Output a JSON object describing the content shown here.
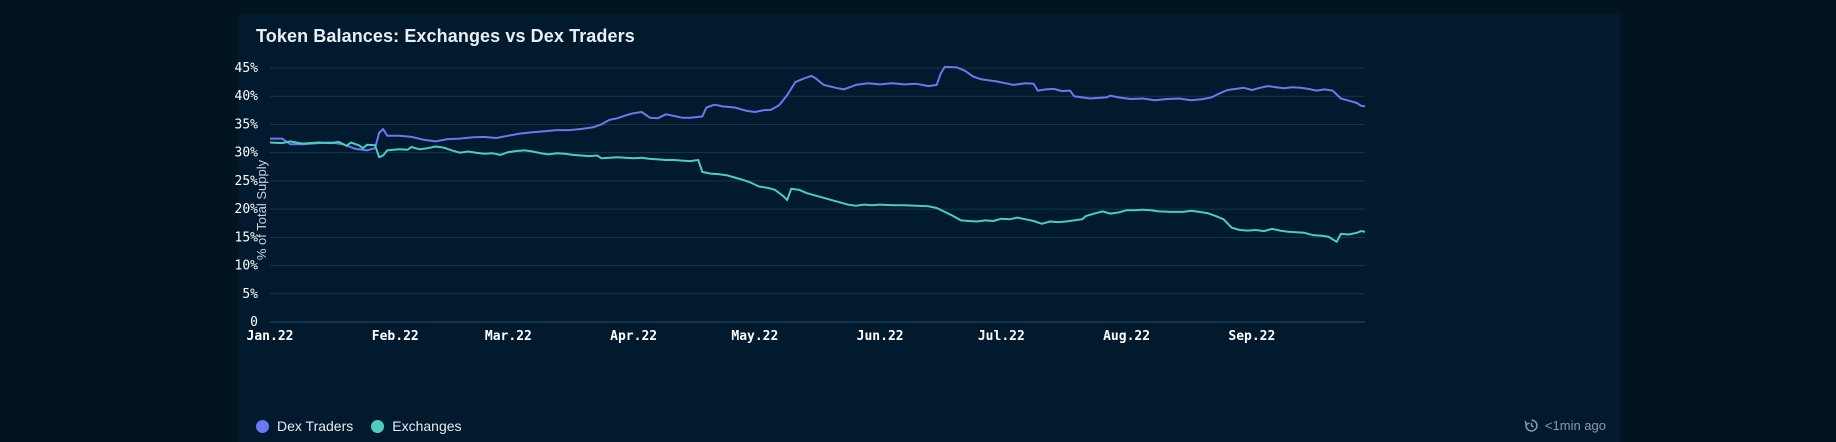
{
  "chart_title": "Token Balances: Exchanges vs Dex Traders",
  "refresh_text": "<1min ago",
  "colors": {
    "background": "#031421",
    "card": "#011a2e",
    "grid": "#16364d",
    "dex": "#6b78f0",
    "exchanges": "#49cec0"
  },
  "chart_data": {
    "type": "line",
    "title": "Token Balances: Exchanges vs Dex Traders",
    "ylabel": "% of Total Supply",
    "xlabel": "",
    "ylim": [
      0,
      45
    ],
    "y_ticks": [
      "0",
      "5%",
      "10%",
      "15%",
      "20%",
      "25%",
      "30%",
      "35%",
      "40%",
      "45%"
    ],
    "x_tick_labels": [
      "Jan.22",
      "Feb.22",
      "Mar.22",
      "Apr.22",
      "May.22",
      "Jun.22",
      "Jul.22",
      "Aug.22",
      "Sep.22"
    ],
    "x_tick_days": [
      0,
      31,
      59,
      90,
      120,
      151,
      181,
      212,
      243
    ],
    "x_range_days": [
      0,
      271
    ],
    "grid": true,
    "legend": "bottom-left",
    "series": [
      {
        "name": "Dex Traders",
        "color": "#6b78f0",
        "points": [
          [
            0,
            32.5
          ],
          [
            3,
            32.5
          ],
          [
            5,
            31.5
          ],
          [
            8,
            31.5
          ],
          [
            12,
            31.7
          ],
          [
            15,
            31.8
          ],
          [
            18,
            31.5
          ],
          [
            21,
            30.7
          ],
          [
            24,
            30.4
          ],
          [
            26,
            30.8
          ],
          [
            27,
            33.5
          ],
          [
            28,
            34.2
          ],
          [
            29,
            33.0
          ],
          [
            32,
            33.0
          ],
          [
            35,
            32.8
          ],
          [
            38,
            32.3
          ],
          [
            41,
            32.0
          ],
          [
            44,
            32.4
          ],
          [
            47,
            32.5
          ],
          [
            50,
            32.7
          ],
          [
            53,
            32.8
          ],
          [
            56,
            32.6
          ],
          [
            59,
            33.0
          ],
          [
            62,
            33.4
          ],
          [
            65,
            33.6
          ],
          [
            68,
            33.8
          ],
          [
            71,
            34.0
          ],
          [
            74,
            34.0
          ],
          [
            77,
            34.2
          ],
          [
            80,
            34.5
          ],
          [
            82,
            35.0
          ],
          [
            84,
            35.8
          ],
          [
            86,
            36.1
          ],
          [
            88,
            36.6
          ],
          [
            90,
            37.0
          ],
          [
            92,
            37.2
          ],
          [
            94,
            36.2
          ],
          [
            96,
            36.1
          ],
          [
            98,
            36.8
          ],
          [
            100,
            36.5
          ],
          [
            102,
            36.2
          ],
          [
            104,
            36.2
          ],
          [
            107,
            36.4
          ],
          [
            108,
            38.0
          ],
          [
            110,
            38.5
          ],
          [
            112,
            38.2
          ],
          [
            115,
            38.0
          ],
          [
            118,
            37.4
          ],
          [
            120,
            37.2
          ],
          [
            122,
            37.5
          ],
          [
            124,
            37.6
          ],
          [
            126,
            38.4
          ],
          [
            128,
            40.2
          ],
          [
            130,
            42.5
          ],
          [
            132,
            43.1
          ],
          [
            134,
            43.6
          ],
          [
            135,
            43.2
          ],
          [
            137,
            42.0
          ],
          [
            140,
            41.5
          ],
          [
            142,
            41.2
          ],
          [
            145,
            42.0
          ],
          [
            148,
            42.3
          ],
          [
            151,
            42.1
          ],
          [
            154,
            42.3
          ],
          [
            157,
            42.1
          ],
          [
            160,
            42.2
          ],
          [
            163,
            41.8
          ],
          [
            165,
            42.0
          ],
          [
            166,
            44.0
          ],
          [
            167,
            45.2
          ],
          [
            170,
            45.1
          ],
          [
            172,
            44.5
          ],
          [
            174,
            43.5
          ],
          [
            176,
            43.0
          ],
          [
            178,
            42.8
          ],
          [
            180,
            42.6
          ],
          [
            182,
            42.3
          ],
          [
            184,
            42.0
          ],
          [
            187,
            42.3
          ],
          [
            189,
            42.2
          ],
          [
            190,
            41.0
          ],
          [
            192,
            41.2
          ],
          [
            194,
            41.3
          ],
          [
            196,
            40.9
          ],
          [
            198,
            41.0
          ],
          [
            199,
            40.0
          ],
          [
            201,
            39.8
          ],
          [
            203,
            39.6
          ],
          [
            205,
            39.7
          ],
          [
            207,
            39.8
          ],
          [
            208,
            40.1
          ],
          [
            210,
            39.8
          ],
          [
            213,
            39.5
          ],
          [
            216,
            39.6
          ],
          [
            219,
            39.3
          ],
          [
            222,
            39.5
          ],
          [
            225,
            39.6
          ],
          [
            228,
            39.3
          ],
          [
            231,
            39.5
          ],
          [
            233,
            39.8
          ],
          [
            235,
            40.5
          ],
          [
            237,
            41.1
          ],
          [
            239,
            41.3
          ],
          [
            241,
            41.5
          ],
          [
            243,
            41.1
          ],
          [
            245,
            41.5
          ],
          [
            247,
            41.8
          ],
          [
            249,
            41.6
          ],
          [
            251,
            41.4
          ],
          [
            253,
            41.6
          ],
          [
            255,
            41.5
          ],
          [
            257,
            41.3
          ],
          [
            259,
            41.0
          ],
          [
            261,
            41.2
          ],
          [
            263,
            41.0
          ],
          [
            265,
            39.6
          ],
          [
            267,
            39.2
          ],
          [
            269,
            38.8
          ],
          [
            270,
            38.3
          ],
          [
            271,
            38.2
          ]
        ]
      },
      {
        "name": "Exchanges",
        "color": "#49cec0",
        "points": [
          [
            0,
            31.8
          ],
          [
            3,
            31.7
          ],
          [
            5,
            32.0
          ],
          [
            8,
            31.6
          ],
          [
            12,
            31.8
          ],
          [
            15,
            31.7
          ],
          [
            17,
            31.9
          ],
          [
            19,
            31.2
          ],
          [
            20,
            31.8
          ],
          [
            22,
            31.3
          ],
          [
            23,
            30.8
          ],
          [
            24,
            31.4
          ],
          [
            26,
            31.3
          ],
          [
            27,
            29.2
          ],
          [
            28,
            29.5
          ],
          [
            29,
            30.4
          ],
          [
            32,
            30.6
          ],
          [
            34,
            30.5
          ],
          [
            35,
            31.0
          ],
          [
            37,
            30.6
          ],
          [
            39,
            30.8
          ],
          [
            41,
            31.1
          ],
          [
            43,
            30.9
          ],
          [
            45,
            30.4
          ],
          [
            47,
            30.0
          ],
          [
            49,
            30.2
          ],
          [
            51,
            30.0
          ],
          [
            53,
            29.8
          ],
          [
            55,
            29.9
          ],
          [
            57,
            29.6
          ],
          [
            59,
            30.1
          ],
          [
            61,
            30.3
          ],
          [
            63,
            30.4
          ],
          [
            65,
            30.2
          ],
          [
            67,
            29.9
          ],
          [
            69,
            29.7
          ],
          [
            71,
            29.9
          ],
          [
            73,
            29.8
          ],
          [
            75,
            29.6
          ],
          [
            77,
            29.5
          ],
          [
            79,
            29.4
          ],
          [
            81,
            29.5
          ],
          [
            82,
            29.0
          ],
          [
            84,
            29.1
          ],
          [
            86,
            29.2
          ],
          [
            88,
            29.1
          ],
          [
            90,
            29.0
          ],
          [
            92,
            29.1
          ],
          [
            94,
            28.9
          ],
          [
            96,
            28.8
          ],
          [
            98,
            28.7
          ],
          [
            100,
            28.7
          ],
          [
            102,
            28.6
          ],
          [
            104,
            28.5
          ],
          [
            106,
            28.7
          ],
          [
            107,
            26.6
          ],
          [
            109,
            26.3
          ],
          [
            111,
            26.2
          ],
          [
            113,
            26.0
          ],
          [
            115,
            25.6
          ],
          [
            117,
            25.2
          ],
          [
            119,
            24.7
          ],
          [
            121,
            24.0
          ],
          [
            123,
            23.8
          ],
          [
            125,
            23.4
          ],
          [
            127,
            22.3
          ],
          [
            128,
            21.6
          ],
          [
            129,
            23.6
          ],
          [
            131,
            23.4
          ],
          [
            133,
            22.8
          ],
          [
            135,
            22.4
          ],
          [
            137,
            22.0
          ],
          [
            139,
            21.6
          ],
          [
            141,
            21.2
          ],
          [
            143,
            20.8
          ],
          [
            145,
            20.6
          ],
          [
            147,
            20.8
          ],
          [
            149,
            20.7
          ],
          [
            151,
            20.8
          ],
          [
            154,
            20.7
          ],
          [
            157,
            20.7
          ],
          [
            160,
            20.6
          ],
          [
            163,
            20.5
          ],
          [
            165,
            20.2
          ],
          [
            167,
            19.5
          ],
          [
            169,
            18.8
          ],
          [
            171,
            18.0
          ],
          [
            173,
            17.9
          ],
          [
            175,
            17.8
          ],
          [
            177,
            18.0
          ],
          [
            179,
            17.9
          ],
          [
            181,
            18.3
          ],
          [
            183,
            18.2
          ],
          [
            185,
            18.5
          ],
          [
            187,
            18.2
          ],
          [
            189,
            17.9
          ],
          [
            191,
            17.4
          ],
          [
            193,
            17.8
          ],
          [
            195,
            17.7
          ],
          [
            197,
            17.8
          ],
          [
            199,
            18.0
          ],
          [
            201,
            18.2
          ],
          [
            202,
            18.8
          ],
          [
            204,
            19.2
          ],
          [
            206,
            19.6
          ],
          [
            208,
            19.2
          ],
          [
            210,
            19.4
          ],
          [
            212,
            19.8
          ],
          [
            214,
            19.8
          ],
          [
            216,
            19.9
          ],
          [
            218,
            19.8
          ],
          [
            220,
            19.6
          ],
          [
            223,
            19.5
          ],
          [
            226,
            19.5
          ],
          [
            228,
            19.7
          ],
          [
            230,
            19.5
          ],
          [
            232,
            19.3
          ],
          [
            234,
            18.8
          ],
          [
            236,
            18.2
          ],
          [
            238,
            16.7
          ],
          [
            240,
            16.3
          ],
          [
            242,
            16.2
          ],
          [
            244,
            16.3
          ],
          [
            246,
            16.1
          ],
          [
            248,
            16.5
          ],
          [
            250,
            16.2
          ],
          [
            252,
            16.0
          ],
          [
            254,
            15.9
          ],
          [
            256,
            15.8
          ],
          [
            258,
            15.4
          ],
          [
            260,
            15.3
          ],
          [
            262,
            15.1
          ],
          [
            264,
            14.2
          ],
          [
            265,
            15.6
          ],
          [
            267,
            15.5
          ],
          [
            269,
            15.8
          ],
          [
            270,
            16.1
          ],
          [
            271,
            16.0
          ]
        ]
      }
    ]
  }
}
